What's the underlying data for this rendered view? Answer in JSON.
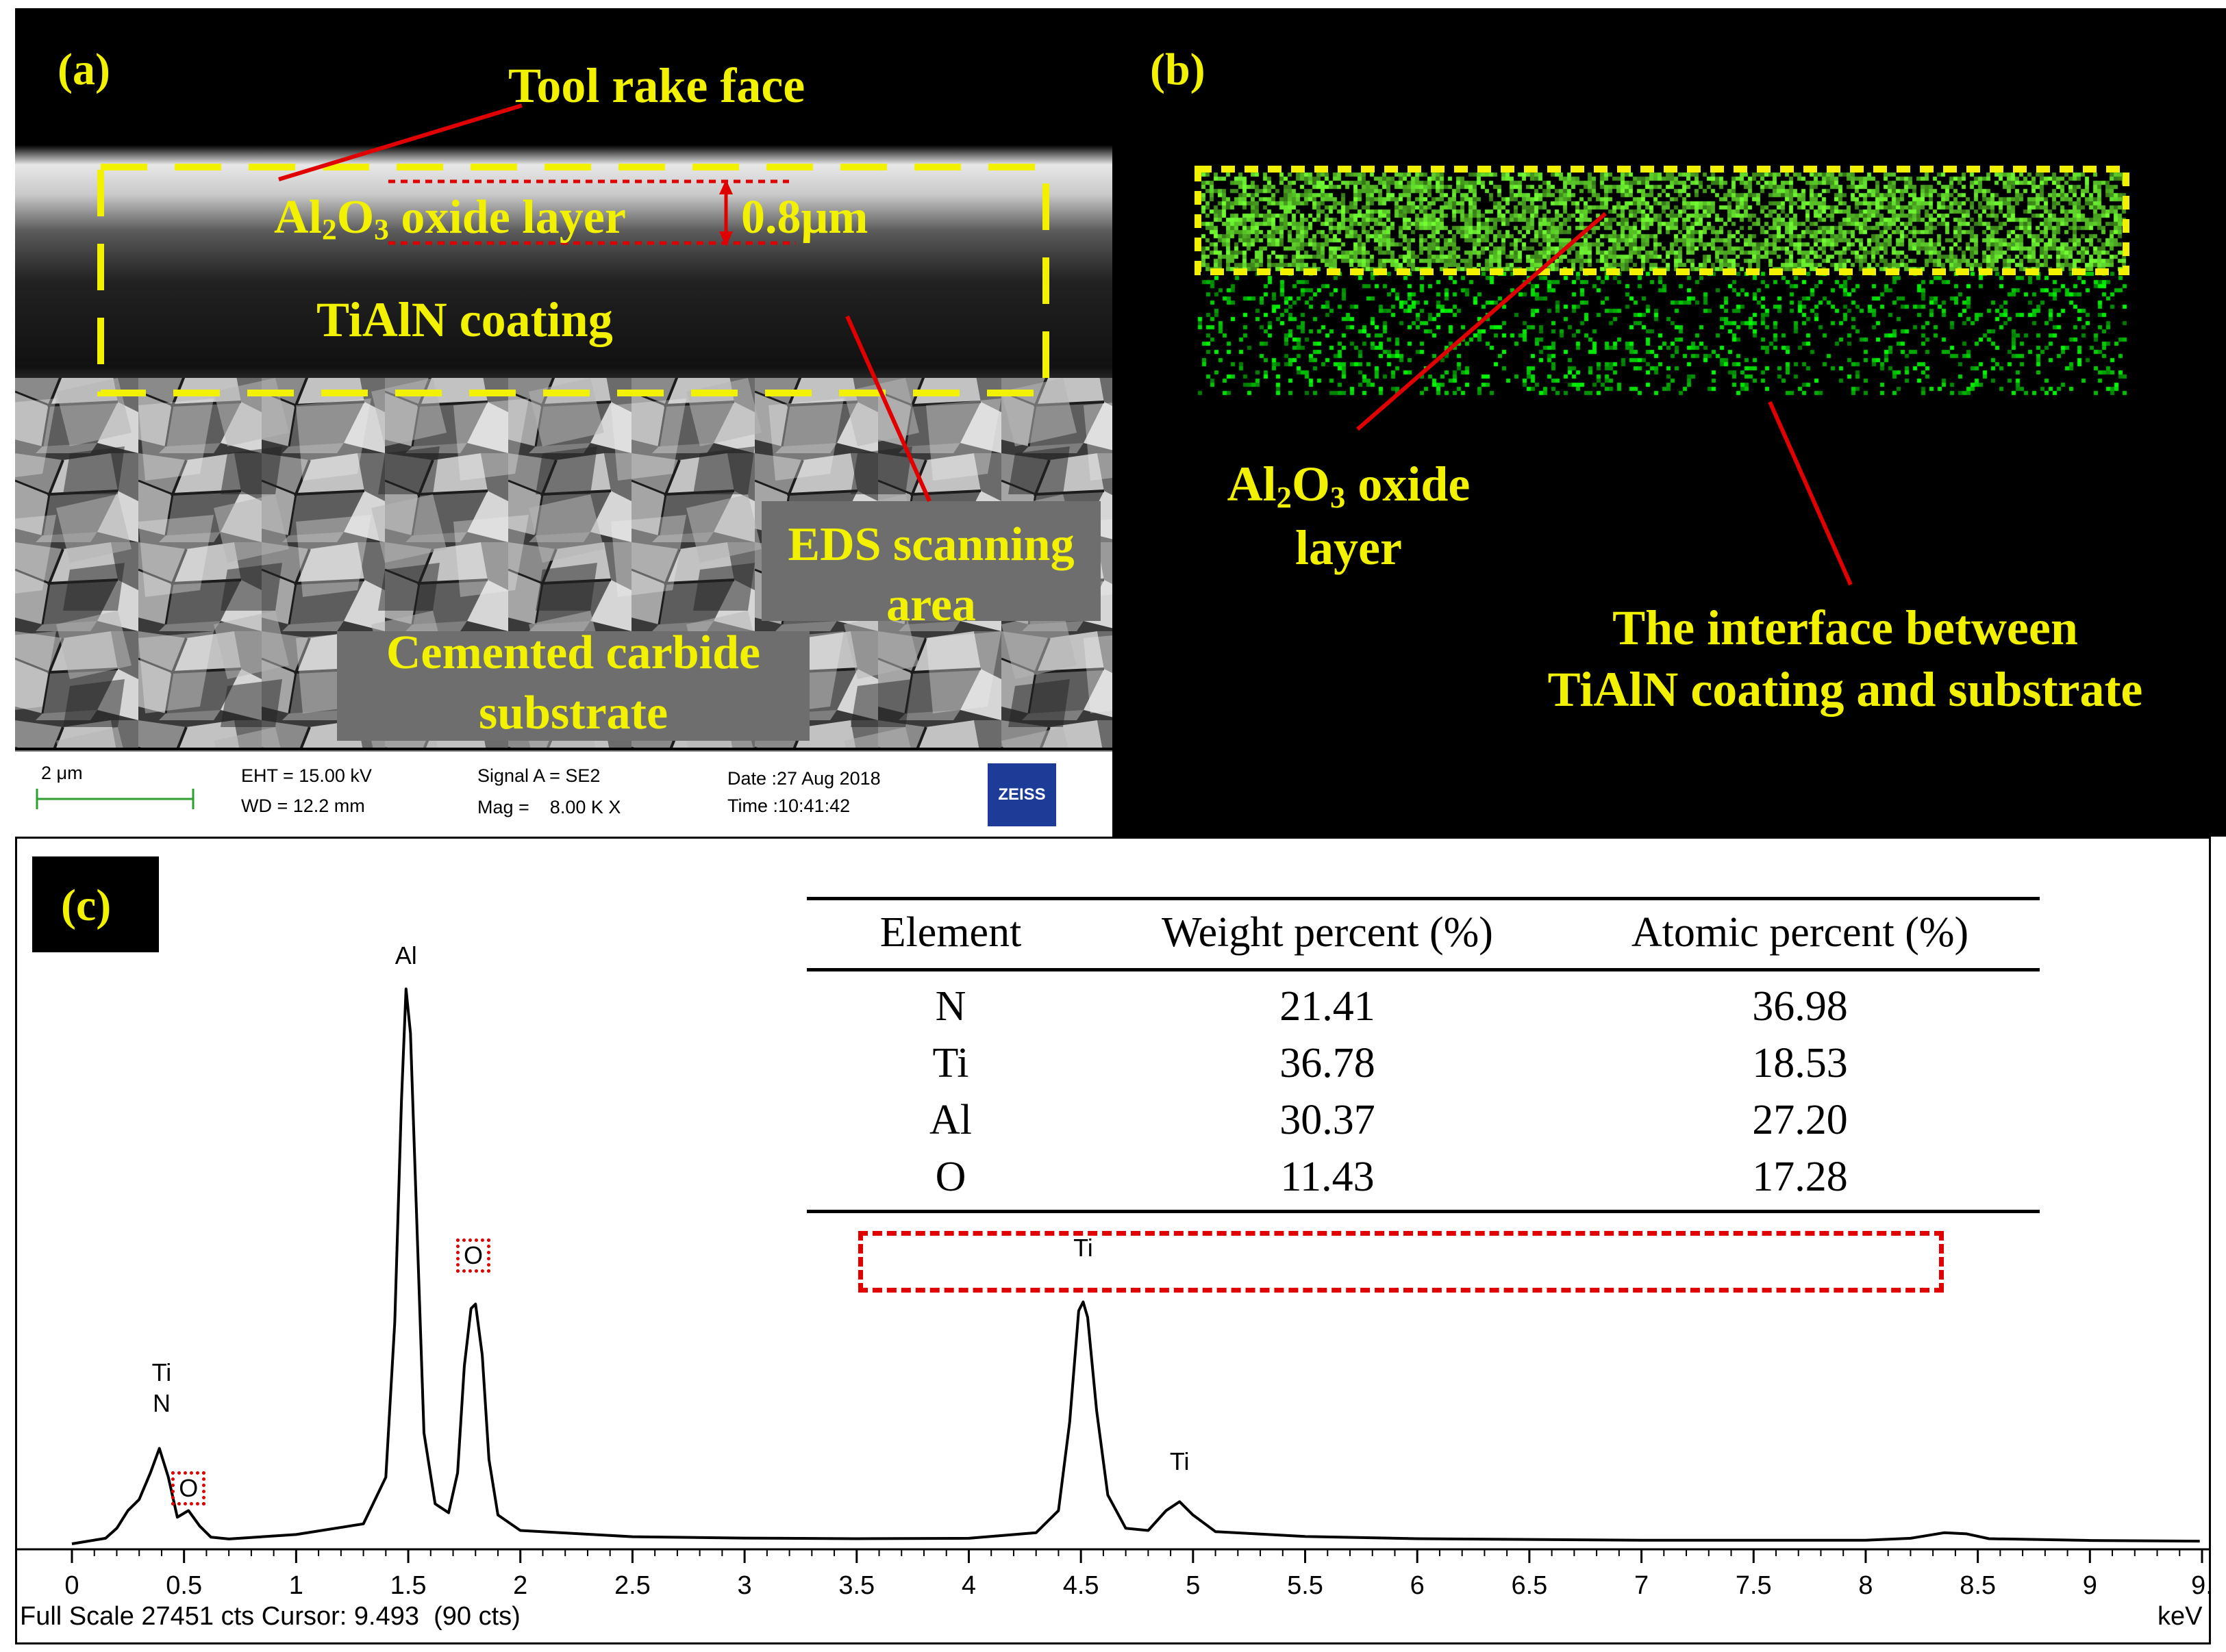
{
  "panel_a": {
    "label": "(a)",
    "annotations": {
      "tool_rake_face": "Tool rake face",
      "oxide_layer_main": "Al",
      "oxide_layer_sub1": "2",
      "oxide_layer_mid": "O",
      "oxide_layer_sub2": "3",
      "oxide_layer_rest": " oxide layer",
      "thickness": "0.8μm",
      "tialn_coating": "TiAlN coating",
      "eds_area_line1": "EDS scanning",
      "eds_area_line2": "area",
      "substrate_line1": "Cemented carbide",
      "substrate_line2": "substrate"
    },
    "info_bar": {
      "scale": "2 μm",
      "eht": "EHT = 15.00 kV",
      "wd": "WD = 12.2 mm",
      "signal": "Signal A = SE2",
      "mag": "Mag =    8.00 K X",
      "date": "Date :27 Aug 2018",
      "time": "Time :10:41:42",
      "logo": "ZEISS"
    }
  },
  "panel_b": {
    "label": "(b)",
    "annotations": {
      "oxide_main": "Al",
      "oxide_sub1": "2",
      "oxide_mid": "O",
      "oxide_sub2": "3",
      "oxide_rest": " oxide",
      "oxide_line2": "layer",
      "interface_line1": "The interface between",
      "interface_line2": "TiAlN coating and substrate"
    }
  },
  "panel_c": {
    "label": "(c)",
    "table": {
      "headers": [
        "Element",
        "Weight percent (%)",
        "Atomic percent (%)"
      ],
      "rows": [
        [
          "N",
          "21.41",
          "36.98"
        ],
        [
          "Ti",
          "36.78",
          "18.53"
        ],
        [
          "Al",
          "30.37",
          "27.20"
        ],
        [
          "O",
          "11.43",
          "17.28"
        ]
      ],
      "highlighted_row": 3
    },
    "footer": {
      "left": "Full Scale 27451 cts Cursor: 9.493  (90 cts)",
      "unit": "keV"
    }
  },
  "chart_data": {
    "type": "line",
    "title": "",
    "xlabel": "keV",
    "ylabel": "",
    "xlim": [
      0,
      9.5
    ],
    "ylim": [
      0,
      27451
    ],
    "x_ticks": [
      "0",
      "0.5",
      "1",
      "1.5",
      "2",
      "2.5",
      "3",
      "3.5",
      "4",
      "4.5",
      "5",
      "5.5",
      "6",
      "6.5",
      "7",
      "7.5",
      "8",
      "8.5",
      "9",
      "9."
    ],
    "peak_labels": [
      {
        "text": "Ti",
        "x": 0.4,
        "y": 7000
      },
      {
        "text": "N",
        "x": 0.4,
        "y": 5600
      },
      {
        "text": "O",
        "x": 0.52,
        "y": 1900,
        "highlighted": true
      },
      {
        "text": "Al",
        "x": 1.49,
        "y": 25800
      },
      {
        "text": "O",
        "x": 1.79,
        "y": 12400,
        "highlighted": true
      },
      {
        "text": "Ti",
        "x": 4.51,
        "y": 12600
      },
      {
        "text": "Ti",
        "x": 4.94,
        "y": 3000
      }
    ],
    "spectrum": [
      [
        0.0,
        0
      ],
      [
        0.15,
        250
      ],
      [
        0.2,
        700
      ],
      [
        0.25,
        1500
      ],
      [
        0.3,
        2000
      ],
      [
        0.35,
        3200
      ],
      [
        0.39,
        4300
      ],
      [
        0.43,
        3000
      ],
      [
        0.47,
        1200
      ],
      [
        0.52,
        1500
      ],
      [
        0.57,
        800
      ],
      [
        0.62,
        300
      ],
      [
        0.7,
        220
      ],
      [
        1.0,
        420
      ],
      [
        1.3,
        900
      ],
      [
        1.4,
        3000
      ],
      [
        1.44,
        10000
      ],
      [
        1.47,
        20000
      ],
      [
        1.49,
        25000
      ],
      [
        1.51,
        23000
      ],
      [
        1.54,
        14000
      ],
      [
        1.57,
        5000
      ],
      [
        1.62,
        1800
      ],
      [
        1.68,
        1400
      ],
      [
        1.72,
        3200
      ],
      [
        1.75,
        8000
      ],
      [
        1.78,
        10600
      ],
      [
        1.8,
        10800
      ],
      [
        1.83,
        8500
      ],
      [
        1.86,
        3800
      ],
      [
        1.9,
        1300
      ],
      [
        2.0,
        600
      ],
      [
        2.5,
        320
      ],
      [
        3.0,
        260
      ],
      [
        3.5,
        230
      ],
      [
        4.0,
        250
      ],
      [
        4.3,
        500
      ],
      [
        4.4,
        1500
      ],
      [
        4.45,
        5500
      ],
      [
        4.49,
        10500
      ],
      [
        4.51,
        10900
      ],
      [
        4.53,
        10200
      ],
      [
        4.57,
        6000
      ],
      [
        4.62,
        2200
      ],
      [
        4.7,
        700
      ],
      [
        4.8,
        600
      ],
      [
        4.88,
        1500
      ],
      [
        4.94,
        1900
      ],
      [
        5.0,
        1300
      ],
      [
        5.1,
        550
      ],
      [
        5.5,
        330
      ],
      [
        6.0,
        230
      ],
      [
        7.0,
        160
      ],
      [
        8.0,
        160
      ],
      [
        8.2,
        250
      ],
      [
        8.35,
        500
      ],
      [
        8.45,
        450
      ],
      [
        8.55,
        230
      ],
      [
        9.0,
        150
      ],
      [
        9.49,
        120
      ]
    ]
  }
}
